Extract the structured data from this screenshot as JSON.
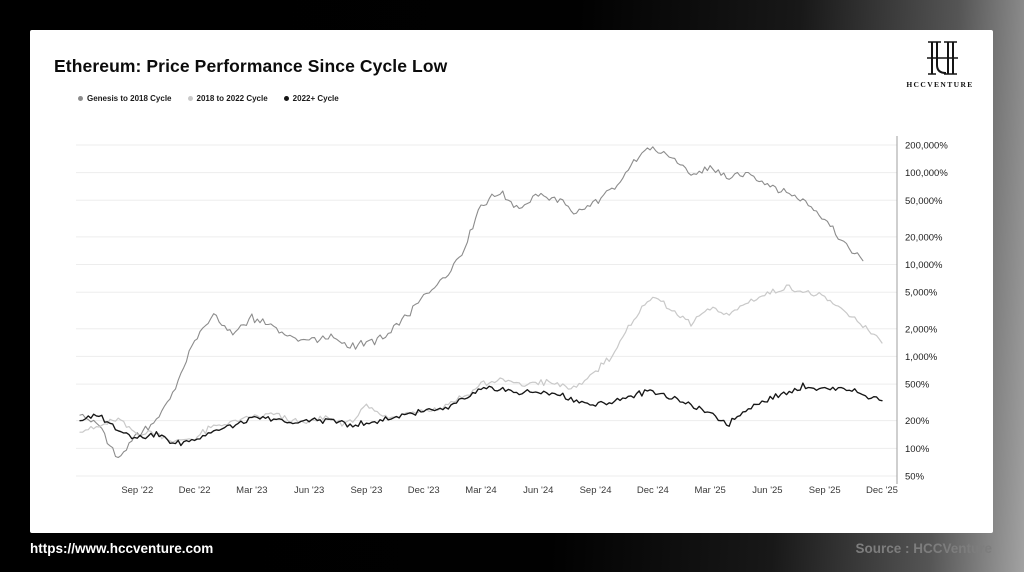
{
  "header": {
    "title": "Ethereum: Price Performance Since Cycle Low",
    "logo_text": "HCCVENTURE"
  },
  "footer": {
    "url": "https://www.hccventure.com",
    "source": "Source : HCCVenture"
  },
  "chart_data": {
    "type": "line",
    "log_scale": true,
    "title": "Ethereum: Price Performance Since Cycle Low",
    "legend_position": "top-left",
    "grid": true,
    "ylim_pct": [
      50,
      200000
    ],
    "y_ticks": [
      "200,000%",
      "100,000%",
      "50,000%",
      "20,000%",
      "10,000%",
      "5,000%",
      "2,000%",
      "1,000%",
      "500%",
      "200%",
      "100%",
      "50%"
    ],
    "y_tick_values": [
      200000,
      100000,
      50000,
      20000,
      10000,
      5000,
      2000,
      1000,
      500,
      200,
      100,
      50
    ],
    "x_ticks": [
      "Sep '22",
      "Dec '22",
      "Mar '23",
      "Jun '23",
      "Sep '23",
      "Dec '23",
      "Mar '24",
      "Jun '24",
      "Sep '24",
      "Dec '24",
      "Mar '25",
      "Jun '25",
      "Sep '25",
      "Dec '25"
    ],
    "x_tick_month_indices": [
      3,
      6,
      9,
      12,
      15,
      18,
      21,
      24,
      27,
      30,
      33,
      36,
      39,
      42
    ],
    "months": [
      "2022-06",
      "2022-07",
      "2022-08",
      "2022-09",
      "2022-10",
      "2022-11",
      "2022-12",
      "2023-01",
      "2023-02",
      "2023-03",
      "2023-04",
      "2023-05",
      "2023-06",
      "2023-07",
      "2023-08",
      "2023-09",
      "2023-10",
      "2023-11",
      "2023-12",
      "2024-01",
      "2024-02",
      "2024-03",
      "2024-04",
      "2024-05",
      "2024-06",
      "2024-07",
      "2024-08",
      "2024-09",
      "2024-10",
      "2024-11",
      "2024-12",
      "2025-01",
      "2025-02",
      "2025-03",
      "2025-04",
      "2025-05",
      "2025-06",
      "2025-07",
      "2025-08",
      "2025-09",
      "2025-10",
      "2025-11",
      "2025-12"
    ],
    "unit": "percent",
    "series": [
      {
        "name": "Genesis to 2018 Cycle",
        "color": "#8c8c8c",
        "values": [
          230,
          180,
          75,
          140,
          200,
          450,
          1500,
          2800,
          1800,
          2600,
          2200,
          1600,
          1500,
          1650,
          1300,
          1400,
          1600,
          2600,
          4500,
          7000,
          13000,
          45000,
          60000,
          40000,
          58000,
          52000,
          36000,
          48000,
          65000,
          130000,
          195000,
          150000,
          90000,
          115000,
          85000,
          100000,
          75000,
          62000,
          48000,
          32000,
          17000,
          11000
        ]
      },
      {
        "name": "2018 to 2022 Cycle",
        "color": "#c9c9c9",
        "values": [
          150,
          170,
          210,
          140,
          150,
          115,
          130,
          175,
          195,
          215,
          235,
          200,
          190,
          215,
          180,
          290,
          220,
          235,
          255,
          285,
          360,
          500,
          570,
          480,
          530,
          500,
          440,
          700,
          1100,
          2600,
          4600,
          3100,
          2300,
          3300,
          2800,
          3900,
          4800,
          5600,
          5100,
          4300,
          3100,
          2200,
          1400
        ]
      },
      {
        "name": "2022+ Cycle",
        "color": "#161616",
        "values": [
          200,
          230,
          160,
          130,
          145,
          112,
          125,
          155,
          175,
          205,
          215,
          190,
          198,
          205,
          182,
          188,
          205,
          232,
          252,
          262,
          330,
          430,
          455,
          400,
          415,
          385,
          335,
          292,
          325,
          385,
          425,
          360,
          290,
          235,
          185,
          280,
          335,
          405,
          485,
          435,
          465,
          385,
          330
        ]
      }
    ]
  }
}
